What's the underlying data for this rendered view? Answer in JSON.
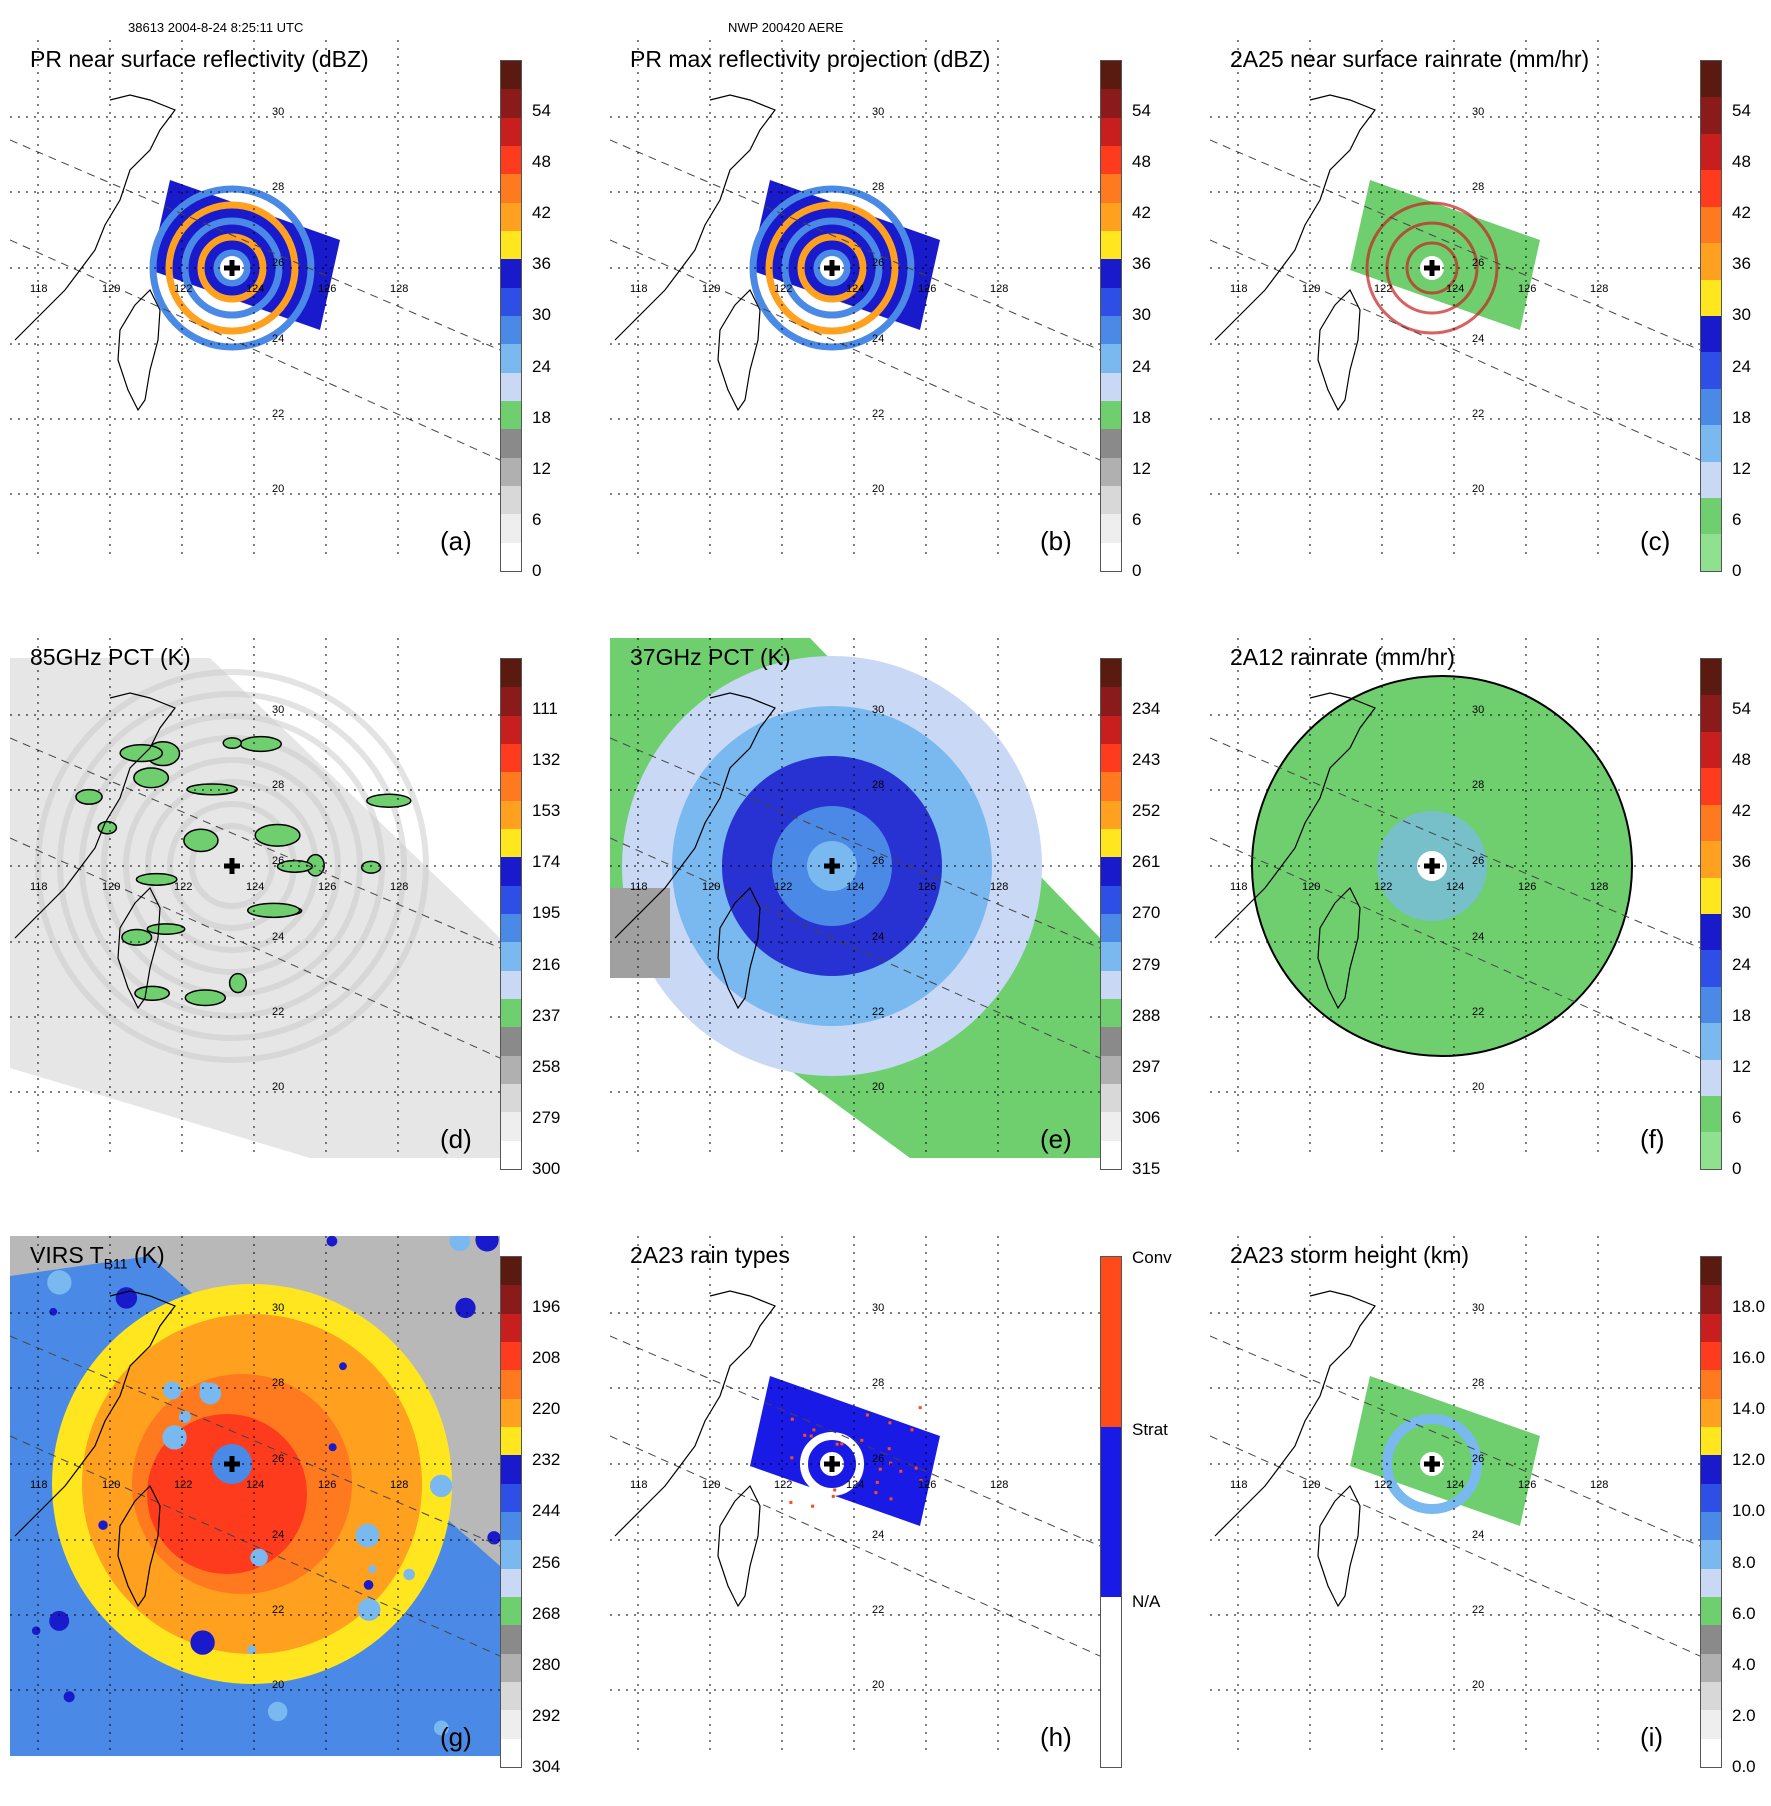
{
  "header": {
    "orbit_time": "38613 2004-8-24 8:25:11 UTC",
    "model": "NWP 200420 AERE"
  },
  "grid": {
    "lon_labels": [
      "118",
      "120",
      "122",
      "124",
      "126",
      "128"
    ],
    "lat_labels": [
      "30",
      "28",
      "26",
      "24",
      "22",
      "20"
    ]
  },
  "storm_center_icon": "plus-icon",
  "panels": [
    {
      "id": "a",
      "title": "PR near surface reflectivity (dBZ)",
      "label": "(a)",
      "ticks": [
        "54",
        "48",
        "42",
        "36",
        "30",
        "24",
        "18",
        "12",
        "6",
        "0"
      ],
      "colors": [
        "#5a1a10",
        "#8b1a1a",
        "#c81e1e",
        "#ff3b1e",
        "#ff7a1e",
        "#ffa01e",
        "#ffe61e",
        "#1a1acd",
        "#2d4fe6",
        "#4a8ae6",
        "#7ab8f0",
        "#c8d8f5",
        "#6fcf6f",
        "#8a8a8a",
        "#b0b0b0",
        "#d8d8d8",
        "#eeeeee",
        "#ffffff"
      ],
      "field": "reflectivity"
    },
    {
      "id": "b",
      "title": "PR max reflectivity projection (dBZ)",
      "label": "(b)",
      "ticks": [
        "54",
        "48",
        "42",
        "36",
        "30",
        "24",
        "18",
        "12",
        "6",
        "0"
      ],
      "colors": [
        "#5a1a10",
        "#8b1a1a",
        "#c81e1e",
        "#ff3b1e",
        "#ff7a1e",
        "#ffa01e",
        "#ffe61e",
        "#1a1acd",
        "#2d4fe6",
        "#4a8ae6",
        "#7ab8f0",
        "#c8d8f5",
        "#6fcf6f",
        "#8a8a8a",
        "#b0b0b0",
        "#d8d8d8",
        "#eeeeee",
        "#ffffff"
      ],
      "field": "reflectivity"
    },
    {
      "id": "c",
      "title": "2A25 near surface rainrate (mm/hr)",
      "label": "(c)",
      "ticks": [
        "54",
        "48",
        "42",
        "36",
        "30",
        "24",
        "18",
        "12",
        "6",
        "0"
      ],
      "colors": [
        "#5a1a10",
        "#8b1a1a",
        "#c81e1e",
        "#ff3b1e",
        "#ff7a1e",
        "#ffa01e",
        "#ffe61e",
        "#1a1acd",
        "#2d4fe6",
        "#4a8ae6",
        "#7ab8f0",
        "#c8d8f5",
        "#6fcf6f",
        "#8fe08f"
      ],
      "field": "rain"
    },
    {
      "id": "d",
      "title": "85GHz PCT (K)",
      "label": "(d)",
      "ticks": [
        "111",
        "132",
        "153",
        "174",
        "195",
        "216",
        "237",
        "258",
        "279",
        "300"
      ],
      "colors": [
        "#5a1a10",
        "#8b1a1a",
        "#c81e1e",
        "#ff3b1e",
        "#ff7a1e",
        "#ffa01e",
        "#ffe61e",
        "#1a1acd",
        "#2d4fe6",
        "#4a8ae6",
        "#7ab8f0",
        "#c8d8f5",
        "#6fcf6f",
        "#8a8a8a",
        "#b0b0b0",
        "#d8d8d8",
        "#eeeeee",
        "#ffffff"
      ],
      "field": "pct85"
    },
    {
      "id": "e",
      "title": "37GHz PCT (K)",
      "label": "(e)",
      "ticks": [
        "234",
        "243",
        "252",
        "261",
        "270",
        "279",
        "288",
        "297",
        "306",
        "315"
      ],
      "colors": [
        "#5a1a10",
        "#8b1a1a",
        "#c81e1e",
        "#ff3b1e",
        "#ff7a1e",
        "#ffa01e",
        "#ffe61e",
        "#1a1acd",
        "#2d4fe6",
        "#4a8ae6",
        "#7ab8f0",
        "#c8d8f5",
        "#6fcf6f",
        "#8a8a8a",
        "#b0b0b0",
        "#d8d8d8",
        "#eeeeee",
        "#ffffff"
      ],
      "field": "pct37"
    },
    {
      "id": "f",
      "title": "2A12 rainrate (mm/hr)",
      "label": "(f)",
      "ticks": [
        "54",
        "48",
        "42",
        "36",
        "30",
        "24",
        "18",
        "12",
        "6",
        "0"
      ],
      "colors": [
        "#5a1a10",
        "#8b1a1a",
        "#c81e1e",
        "#ff3b1e",
        "#ff7a1e",
        "#ffa01e",
        "#ffe61e",
        "#1a1acd",
        "#2d4fe6",
        "#4a8ae6",
        "#7ab8f0",
        "#c8d8f5",
        "#6fcf6f",
        "#8fe08f"
      ],
      "field": "rain12"
    },
    {
      "id": "g",
      "title": "VIRS T",
      "title_sub": "B11",
      "title_end": " (K)",
      "label": "(g)",
      "ticks": [
        "196",
        "208",
        "220",
        "232",
        "244",
        "256",
        "268",
        "280",
        "292",
        "304"
      ],
      "colors": [
        "#5a1a10",
        "#8b1a1a",
        "#c81e1e",
        "#ff3b1e",
        "#ff7a1e",
        "#ffa01e",
        "#ffe61e",
        "#1a1acd",
        "#2d4fe6",
        "#4a8ae6",
        "#7ab8f0",
        "#c8d8f5",
        "#6fcf6f",
        "#8a8a8a",
        "#b0b0b0",
        "#d8d8d8",
        "#eeeeee",
        "#ffffff"
      ],
      "field": "virs"
    },
    {
      "id": "h",
      "title": "2A23 rain types",
      "label": "(h)",
      "ticks": [
        "Conv",
        "Strat",
        "N/A"
      ],
      "colors": [
        "#ff4a1a",
        "#1a1ae6",
        "#ffffff"
      ],
      "field": "raintype"
    },
    {
      "id": "i",
      "title": "2A23 storm height (km)",
      "label": "(i)",
      "ticks": [
        "18.0",
        "16.0",
        "14.0",
        "12.0",
        "10.0",
        "8.0",
        "6.0",
        "4.0",
        "2.0",
        "0.0"
      ],
      "colors": [
        "#5a1a10",
        "#8b1a1a",
        "#c81e1e",
        "#ff3b1e",
        "#ff7a1e",
        "#ffa01e",
        "#ffe61e",
        "#1a1acd",
        "#2d4fe6",
        "#4a8ae6",
        "#7ab8f0",
        "#c8d8f5",
        "#6fcf6f",
        "#8a8a8a",
        "#b0b0b0",
        "#d8d8d8",
        "#eeeeee",
        "#ffffff"
      ],
      "field": "height"
    }
  ]
}
